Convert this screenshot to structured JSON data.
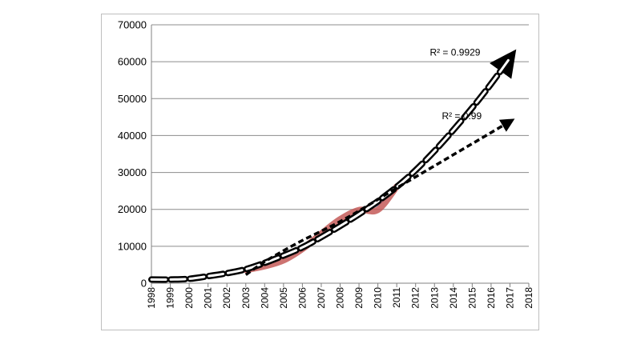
{
  "chart_data": {
    "type": "line",
    "title": "",
    "xlabel": "",
    "ylabel": "",
    "ylim": [
      0,
      70000
    ],
    "yticks": [
      "0",
      "10000",
      "20000",
      "30000",
      "40000",
      "50000",
      "60000",
      "70000"
    ],
    "categories": [
      "1998",
      "1999",
      "2000",
      "2001",
      "2002",
      "2003",
      "2004",
      "2005",
      "2006",
      "2007",
      "2008",
      "2009",
      "2010",
      "2011",
      "2012",
      "2013",
      "2014",
      "2015",
      "2016",
      "2017",
      "2018"
    ],
    "grid": true,
    "legend": "none",
    "series": [
      {
        "style": "solid-blue",
        "color": "#4f81bd",
        "x": [
          1998,
          1999,
          2000,
          2001,
          2002,
          2003,
          2004,
          2005,
          2006,
          2007,
          2008,
          2009,
          2010,
          2011
        ],
        "values": [
          1000,
          1100,
          1300,
          2000,
          2800,
          3700,
          5200,
          7300,
          9800,
          13000,
          16300,
          19400,
          21200,
          26000
        ]
      },
      {
        "style": "thick-red",
        "color": "#c0504d",
        "x": [
          2003,
          2004,
          2005,
          2006,
          2007,
          2008,
          2009,
          2010,
          2011
        ],
        "values": [
          3600,
          4600,
          6200,
          9300,
          13400,
          17300,
          19800,
          19900,
          26200
        ]
      },
      {
        "style": "white-dashed-black-outline",
        "color": "#000000",
        "x": [
          1998,
          1999,
          2000,
          2001,
          2002,
          2003,
          2004,
          2005,
          2006,
          2007,
          2008,
          2009,
          2010,
          2011,
          2012,
          2013,
          2014,
          2015,
          2016,
          2017
        ],
        "values": [
          1000,
          1000,
          1200,
          1900,
          2700,
          3800,
          5500,
          7500,
          9700,
          12500,
          15500,
          18700,
          22200,
          26100,
          30600,
          35800,
          41500,
          47500,
          54000,
          61000
        ],
        "r2": "R² = 0.9929"
      },
      {
        "style": "black-dashed",
        "color": "#000000",
        "x": [
          2003,
          2004,
          2005,
          2006,
          2007,
          2008,
          2009,
          2010,
          2011,
          2012,
          2013,
          2014,
          2015,
          2016,
          2017
        ],
        "values": [
          2300,
          5800,
          8800,
          11600,
          14100,
          16700,
          19600,
          22700,
          25800,
          28800,
          31800,
          34800,
          37800,
          40800,
          43800
        ],
        "r2": "R² = 0.99"
      }
    ]
  }
}
